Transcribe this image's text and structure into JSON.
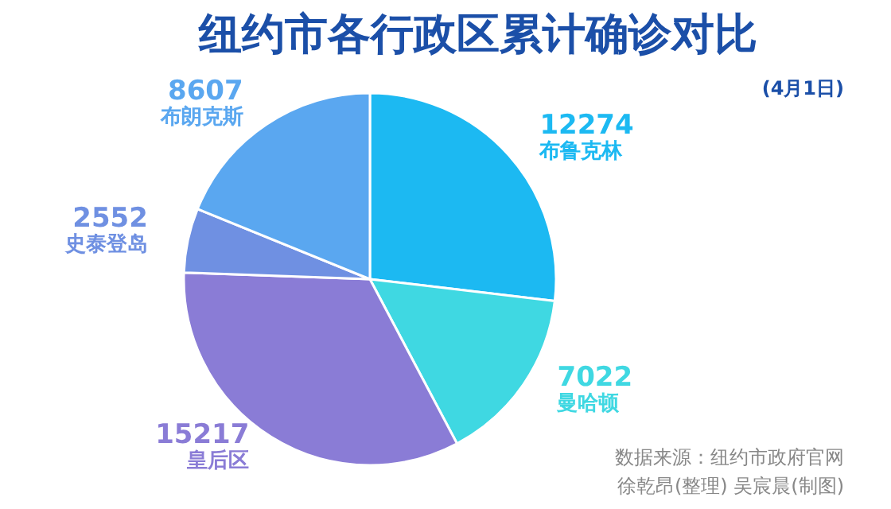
{
  "chart_data": {
    "type": "pie",
    "title": "纽约市各行政区累计确诊对比",
    "subtitle": "(4月1日)",
    "categories": [
      "布鲁克林",
      "曼哈顿",
      "皇后区",
      "史泰登岛",
      "布朗克斯"
    ],
    "values": [
      12274,
      7022,
      15217,
      2552,
      8607
    ],
    "colors": [
      "#1cb9f2",
      "#3fd8e2",
      "#8a7cd6",
      "#6f90e2",
      "#5aa7f0"
    ],
    "data_labels": true,
    "annotations": [
      "数据来源：纽约市政府官网",
      "徐乾昂(整理) 吴宸晨(制图)"
    ]
  }
}
